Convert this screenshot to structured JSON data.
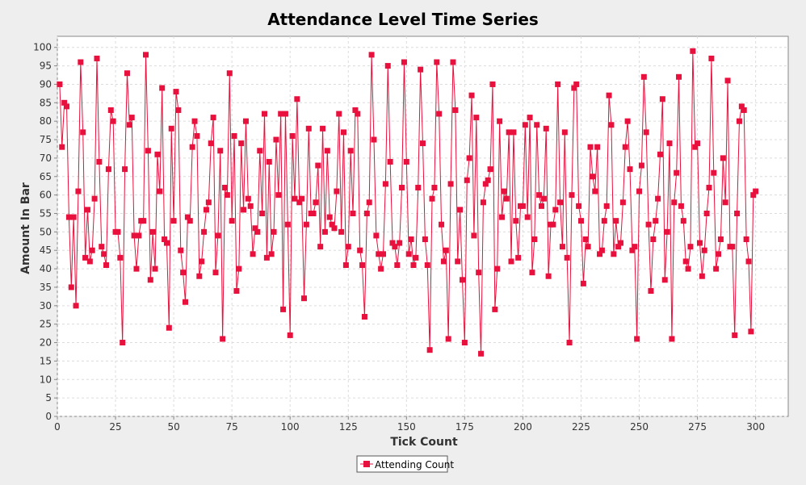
{
  "chart_data": {
    "type": "line",
    "title": "Attendance Level Time Series",
    "xlabel": "Tick Count",
    "ylabel": "Amount In Bar",
    "xlim": [
      0,
      314
    ],
    "ylim": [
      0,
      103
    ],
    "xticks": [
      0,
      25,
      50,
      75,
      100,
      125,
      150,
      175,
      200,
      225,
      250,
      275,
      300
    ],
    "yticks": [
      0,
      5,
      10,
      15,
      20,
      25,
      30,
      35,
      40,
      45,
      50,
      55,
      60,
      65,
      70,
      75,
      80,
      85,
      90,
      95,
      100
    ],
    "grid": true,
    "legend_position": "bottom-center",
    "series": [
      {
        "name": "Attending Count",
        "color": "#e8103c",
        "marker": "square",
        "x_start": 1,
        "x_step": 1,
        "values": [
          90,
          73,
          85,
          84,
          54,
          35,
          54,
          30,
          61,
          96,
          77,
          43,
          56,
          42,
          45,
          59,
          97,
          69,
          46,
          44,
          41,
          67,
          83,
          80,
          50,
          50,
          43,
          20,
          67,
          93,
          79,
          81,
          49,
          40,
          49,
          53,
          53,
          98,
          72,
          37,
          50,
          40,
          71,
          61,
          89,
          48,
          47,
          24,
          78,
          53,
          88,
          83,
          45,
          39,
          31,
          54,
          53,
          73,
          80,
          76,
          38,
          42,
          50,
          56,
          58,
          74,
          81,
          39,
          49,
          72,
          21,
          62,
          60,
          93,
          53,
          76,
          34,
          40,
          74,
          56,
          80,
          59,
          57,
          44,
          51,
          50,
          72,
          55,
          82,
          43,
          69,
          44,
          50,
          75,
          60,
          82,
          29,
          82,
          52,
          22,
          76,
          59,
          86,
          58,
          59,
          32,
          52,
          78,
          55,
          55,
          58,
          68,
          46,
          78,
          50,
          72,
          54,
          52,
          51,
          61,
          82,
          50,
          77,
          41,
          46,
          72,
          55,
          83,
          82,
          45,
          41,
          27,
          55,
          58,
          98,
          75,
          49,
          44,
          40,
          44,
          63,
          95,
          69,
          47,
          46,
          41,
          47,
          62,
          96,
          69,
          44,
          48,
          41,
          43,
          62,
          94,
          74,
          48,
          41,
          18,
          59,
          62,
          96,
          82,
          52,
          42,
          45,
          21,
          63,
          96,
          83,
          42,
          56,
          37,
          20,
          64,
          70,
          87,
          49,
          81,
          39,
          17,
          58,
          63,
          64,
          67,
          90,
          29,
          40,
          80,
          54,
          61,
          59,
          77,
          42,
          77,
          53,
          43,
          57,
          57,
          79,
          54,
          81,
          39,
          48,
          79,
          60,
          57,
          59,
          78,
          38,
          52,
          52,
          56,
          90,
          58,
          46,
          77,
          43,
          20,
          60,
          89,
          90,
          57,
          53,
          36,
          48,
          46,
          73,
          65,
          61,
          73,
          44,
          45,
          53,
          57,
          87,
          79,
          44,
          53,
          46,
          47,
          58,
          73,
          80,
          67,
          45,
          46,
          21,
          61,
          68,
          92,
          77,
          52,
          34,
          48,
          53,
          59,
          71,
          86,
          37,
          50,
          74,
          21,
          58,
          66,
          92,
          57,
          53,
          42,
          40,
          46,
          99,
          73,
          74,
          47,
          38,
          45,
          55,
          62,
          97,
          66,
          40,
          44,
          48,
          70,
          58,
          91,
          46,
          46,
          22,
          55,
          80,
          84,
          83,
          48,
          42,
          23,
          60,
          61
        ]
      }
    ]
  }
}
